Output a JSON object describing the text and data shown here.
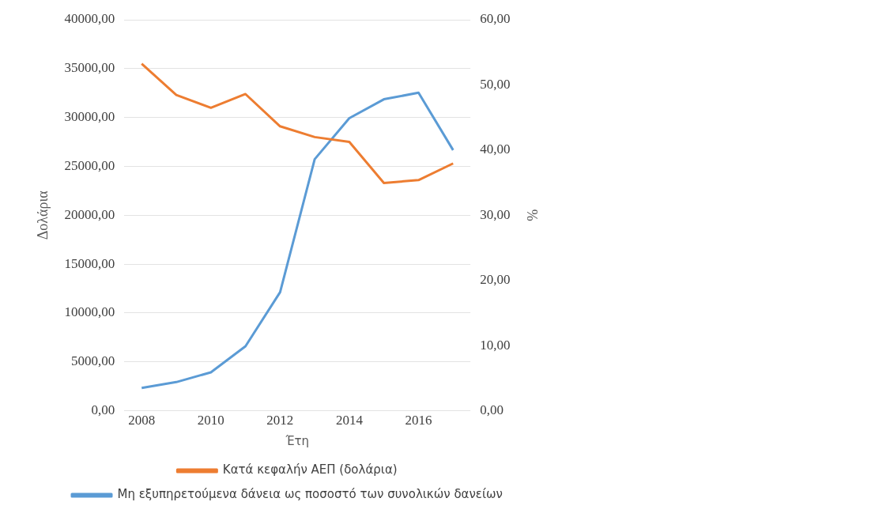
{
  "chart_data": {
    "type": "line",
    "xlabel": "Έτη",
    "ylabel": "Δολάρια",
    "y2label": "%",
    "categories": [
      "2008",
      null,
      "2010",
      null,
      "2012",
      null,
      "2014",
      null,
      "2016",
      null
    ],
    "series": [
      {
        "name": "Κατά κεφαλήν ΑΕΠ (δολάρια)",
        "color": "#ed7d31",
        "values": [
          35500,
          32300,
          31000,
          32400,
          29100,
          28000,
          27500,
          23300,
          23600,
          25300
        ]
      },
      {
        "name": "Μη εξυπηρετούμενα δάνεια ως ποσοστό των συνολικών δανείων",
        "color": "#5b9bd5",
        "axis": "y2",
        "values": [
          3.5,
          4.4,
          5.9,
          9.9,
          18.2,
          38.6,
          44.9,
          47.8,
          48.8,
          40.0
        ]
      }
    ],
    "ylim": [
      0,
      40000
    ],
    "yticks": [
      {
        "value": 0,
        "label": "0,00"
      },
      {
        "value": 5000,
        "label": "5000,00"
      },
      {
        "value": 10000,
        "label": "10000,00"
      },
      {
        "value": 15000,
        "label": "15000,00"
      },
      {
        "value": 20000,
        "label": "20000,00"
      },
      {
        "value": 25000,
        "label": "25000,00"
      },
      {
        "value": 30000,
        "label": "30000,00"
      },
      {
        "value": 35000,
        "label": "35000,00"
      },
      {
        "value": 40000,
        "label": "40000,00"
      }
    ],
    "y2lim": [
      0,
      60
    ],
    "y2ticks": [
      {
        "value": 0,
        "label": "0,00"
      },
      {
        "value": 10,
        "label": "10,00"
      },
      {
        "value": 20,
        "label": "20,00"
      },
      {
        "value": 30,
        "label": "30,00"
      },
      {
        "value": 40,
        "label": "40,00"
      },
      {
        "value": 50,
        "label": "50,00"
      },
      {
        "value": 60,
        "label": "60,00"
      }
    ],
    "grid": "y",
    "legend": "bottom",
    "marker": "none",
    "line_style": "solid"
  }
}
